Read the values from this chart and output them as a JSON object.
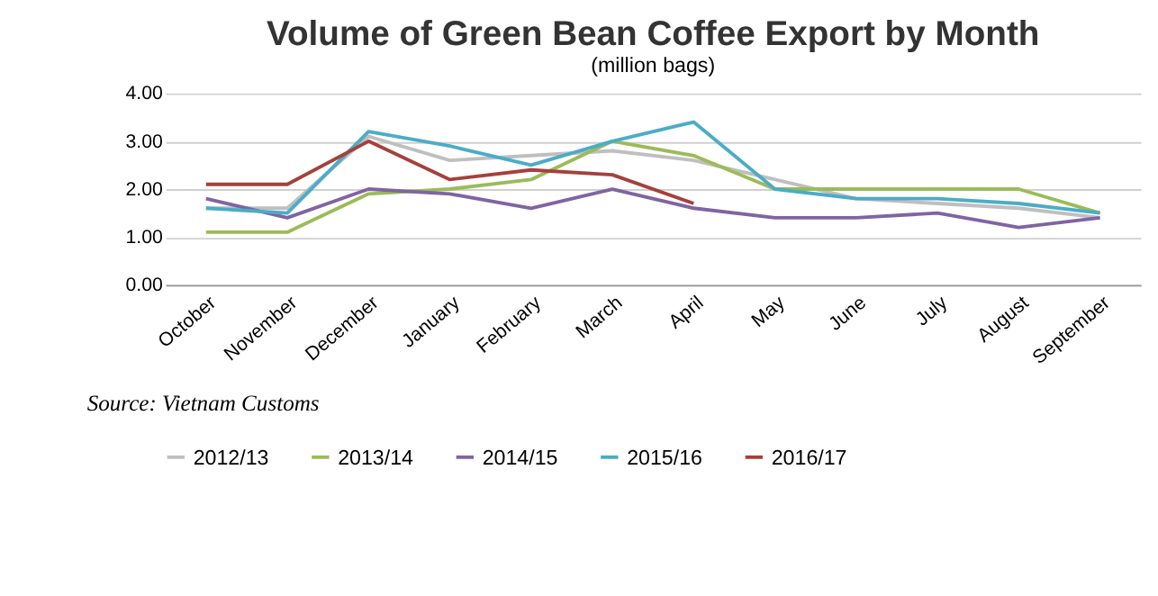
{
  "chart_data": {
    "type": "line",
    "title": "Volume of Green Bean Coffee Export by Month",
    "subtitle": "(million bags)",
    "categories": [
      "October",
      "November",
      "December",
      "January",
      "February",
      "March",
      "April",
      "May",
      "June",
      "July",
      "August",
      "September"
    ],
    "series": [
      {
        "name": "2012/13",
        "color": "#bfbfbf",
        "values": [
          1.6,
          1.6,
          3.1,
          2.6,
          2.7,
          2.8,
          2.6,
          2.2,
          1.8,
          1.7,
          1.6,
          1.4
        ]
      },
      {
        "name": "2013/14",
        "color": "#9bbb59",
        "values": [
          1.1,
          1.1,
          1.9,
          2.0,
          2.2,
          3.0,
          2.7,
          2.0,
          2.0,
          2.0,
          2.0,
          1.5
        ]
      },
      {
        "name": "2014/15",
        "color": "#8064a2",
        "values": [
          1.8,
          1.4,
          2.0,
          1.9,
          1.6,
          2.0,
          1.6,
          1.4,
          1.4,
          1.5,
          1.2,
          1.4
        ]
      },
      {
        "name": "2015/16",
        "color": "#4bacc6",
        "values": [
          1.6,
          1.5,
          3.2,
          2.9,
          2.5,
          3.0,
          3.4,
          2.0,
          1.8,
          1.8,
          1.7,
          1.5
        ]
      },
      {
        "name": "2016/17",
        "color": "#a5403c",
        "values": [
          2.1,
          2.1,
          3.0,
          2.2,
          2.4,
          2.3,
          1.7,
          null,
          null,
          null,
          null,
          null
        ]
      }
    ],
    "ylim": [
      0,
      4
    ],
    "yticks": [
      {
        "value": 0,
        "label": "0.00"
      },
      {
        "value": 1,
        "label": "1.00"
      },
      {
        "value": 2,
        "label": "2.00"
      },
      {
        "value": 3,
        "label": "3.00"
      },
      {
        "value": 4,
        "label": "4.00"
      }
    ],
    "grid": "y",
    "legend": "bottom",
    "marker": "none",
    "line_style": "solid",
    "annotations": [
      "Source: Vietnam Customs"
    ]
  }
}
